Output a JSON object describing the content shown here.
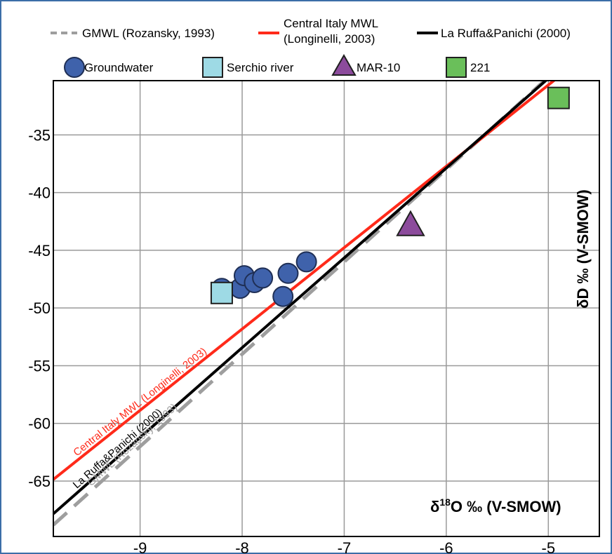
{
  "chart_data": {
    "type": "scatter",
    "xlabel_main": "δ",
    "xlabel_sup": "18",
    "xlabel_rest": "O ‰ (V-SMOW)",
    "ylabel": "δD ‰ (V-SMOW)",
    "xlim": [
      -9.85,
      -4.5
    ],
    "ylim": [
      -69.8,
      -30.3
    ],
    "x_ticks": [
      -9,
      -8,
      -7,
      -6,
      -5
    ],
    "y_ticks": [
      -35,
      -40,
      -45,
      -50,
      -55,
      -60,
      -65
    ],
    "x_tick_labels": [
      "-9",
      "-8",
      "-7",
      "-6",
      "-5"
    ],
    "y_tick_labels": [
      "-35",
      "-40",
      "-45",
      "-50",
      "-55",
      "-60",
      "-65"
    ],
    "grid": true,
    "legend_position": "top",
    "lines": [
      {
        "key": "gmwl",
        "legend": "GMWL (Rozansky, 1993)",
        "label": "GMWL (Rozansky, 1993)",
        "slope": 8,
        "intercept": 10,
        "color": "#9e9e9e",
        "dashed": true
      },
      {
        "key": "central",
        "legend_line1": "Central Italy MWL",
        "legend_line2": "(Longinelli, 2003)",
        "label": "Central Italy MWL (Longinelli, 2003)",
        "slope": 7.047,
        "intercept": 4.556,
        "color": "#ff2a1a",
        "dashed": false
      },
      {
        "key": "laruffa",
        "legend": "La Ruffa&Panichi (2000)",
        "label": "La Ruffa&Panichi (2000)",
        "slope": 7.78,
        "intercept": 8.8,
        "color": "#000000",
        "dashed": false
      }
    ],
    "series": [
      {
        "name": "Groundwater",
        "marker": "circle",
        "color": "#3f62ab",
        "points": [
          [
            -8.2,
            -48.3
          ],
          [
            -8.02,
            -48.3
          ],
          [
            -7.98,
            -47.2
          ],
          [
            -7.88,
            -47.8
          ],
          [
            -7.8,
            -47.4
          ],
          [
            -7.55,
            -47.0
          ],
          [
            -7.37,
            -46.0
          ],
          [
            -7.6,
            -49.0
          ]
        ]
      },
      {
        "name": "Serchio river",
        "marker": "square",
        "color": "#9edae5",
        "points": [
          [
            -8.2,
            -48.7
          ]
        ]
      },
      {
        "name": "MAR-10",
        "marker": "triangle",
        "color": "#8c4b9c",
        "points": [
          [
            -6.35,
            -42.8
          ]
        ]
      },
      {
        "name": "221",
        "marker": "square",
        "color": "#6abf5a",
        "points": [
          [
            -4.9,
            -31.8
          ]
        ]
      }
    ]
  }
}
